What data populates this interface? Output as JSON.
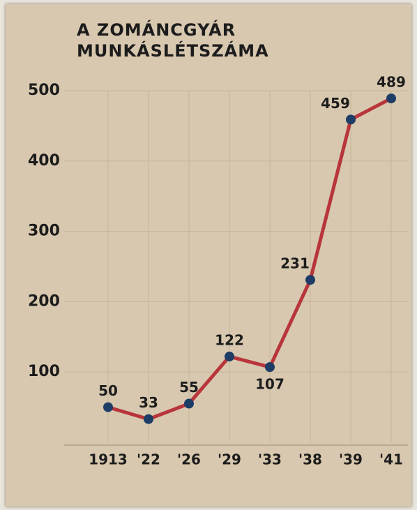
{
  "chart_data": {
    "type": "line",
    "title": "A ZOMÁNCGYÁR MUNKÁSLÉTSZÁMA",
    "categories": [
      "1913",
      "'22",
      "'26",
      "'29",
      "'33",
      "'38",
      "'39",
      "'41"
    ],
    "series": [
      {
        "name": "munkáslétszám",
        "color": "#b8363b",
        "marker_color": "#1d3c66",
        "values": [
          50,
          33,
          55,
          122,
          107,
          231,
          459,
          489
        ]
      }
    ],
    "ylim": [
      0,
      500
    ],
    "yticks": [
      100,
      200,
      300,
      400,
      500
    ],
    "grid": true
  }
}
